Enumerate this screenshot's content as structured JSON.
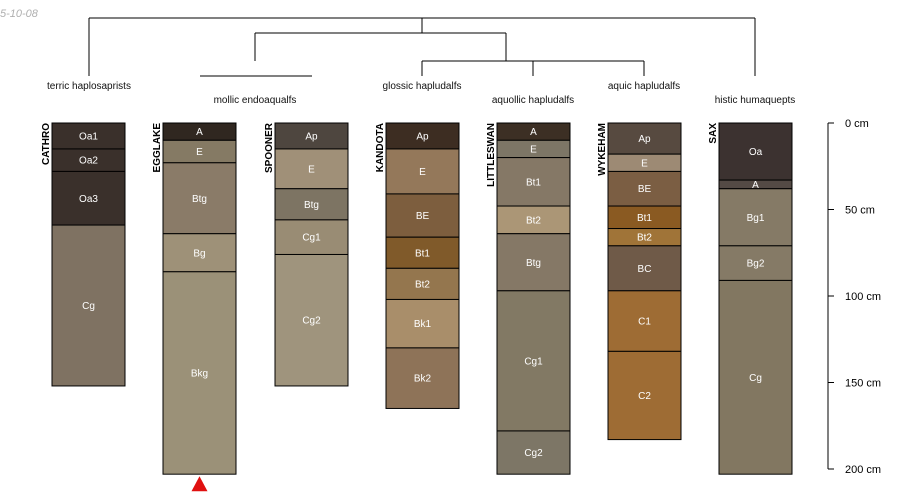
{
  "stamp": "5-10-08",
  "colors": {
    "line": "#000000",
    "label_light": "#ffffff",
    "label_dark": "#222222",
    "marker": "#e01010"
  },
  "profiles": [
    {
      "name": "CATHRO",
      "taxon": "terric haplosaprists",
      "depth_max": 152,
      "horizons": [
        {
          "name": "Oa1",
          "top": 0,
          "bottom": 15,
          "color": "#3a302b"
        },
        {
          "name": "Oa2",
          "top": 15,
          "bottom": 28,
          "color": "#3a302b"
        },
        {
          "name": "Oa3",
          "top": 28,
          "bottom": 59,
          "color": "#3a302b"
        },
        {
          "name": "Cg",
          "top": 59,
          "bottom": 152,
          "color": "#7f7262"
        }
      ]
    },
    {
      "name": "EGGLAKE",
      "taxon": "mollic endoaqualfs",
      "depth_max": 203,
      "marker": true,
      "horizons": [
        {
          "name": "A",
          "top": 0,
          "bottom": 10,
          "color": "#302720"
        },
        {
          "name": "E",
          "top": 10,
          "bottom": 23,
          "color": "#857a64"
        },
        {
          "name": "Btg",
          "top": 23,
          "bottom": 64,
          "color": "#8a7b68"
        },
        {
          "name": "Bg",
          "top": 64,
          "bottom": 86,
          "color": "#9e9178"
        },
        {
          "name": "Bkg",
          "top": 86,
          "bottom": 203,
          "color": "#9b9178"
        }
      ]
    },
    {
      "name": "SPOONER",
      "taxon": "",
      "depth_max": 152,
      "horizons": [
        {
          "name": "Ap",
          "top": 0,
          "bottom": 15,
          "color": "#4e463f"
        },
        {
          "name": "E",
          "top": 15,
          "bottom": 38,
          "color": "#a09078"
        },
        {
          "name": "Btg",
          "top": 38,
          "bottom": 56,
          "color": "#7d7463"
        },
        {
          "name": "Cg1",
          "top": 56,
          "bottom": 76,
          "color": "#998c74"
        },
        {
          "name": "Cg2",
          "top": 76,
          "bottom": 152,
          "color": "#9f947d"
        }
      ]
    },
    {
      "name": "KANDOTA",
      "taxon": "glossic hapludalfs",
      "depth_max": 165,
      "horizons": [
        {
          "name": "Ap",
          "top": 0,
          "bottom": 15,
          "color": "#3d2d22"
        },
        {
          "name": "E",
          "top": 15,
          "bottom": 41,
          "color": "#94785a"
        },
        {
          "name": "BE",
          "top": 41,
          "bottom": 66,
          "color": "#7d5e3e"
        },
        {
          "name": "Bt1",
          "top": 66,
          "bottom": 84,
          "color": "#805a2a"
        },
        {
          "name": "Bt2",
          "top": 84,
          "bottom": 102,
          "color": "#94764e"
        },
        {
          "name": "Bk1",
          "top": 102,
          "bottom": 130,
          "color": "#a98e6a"
        },
        {
          "name": "Bk2",
          "top": 130,
          "bottom": 165,
          "color": "#8e7358"
        }
      ]
    },
    {
      "name": "LITTLESWAN",
      "taxon": "aquollic hapludalfs",
      "depth_max": 203,
      "horizons": [
        {
          "name": "A",
          "top": 0,
          "bottom": 10,
          "color": "#3c2f24"
        },
        {
          "name": "E",
          "top": 10,
          "bottom": 20,
          "color": "#7d7666"
        },
        {
          "name": "Bt1",
          "top": 20,
          "bottom": 48,
          "color": "#857866"
        },
        {
          "name": "Bt2",
          "top": 48,
          "bottom": 64,
          "color": "#ab9676"
        },
        {
          "name": "Btg",
          "top": 64,
          "bottom": 97,
          "color": "#857866"
        },
        {
          "name": "Cg1",
          "top": 97,
          "bottom": 178,
          "color": "#827964"
        },
        {
          "name": "Cg2",
          "top": 178,
          "bottom": 203,
          "color": "#7d7666"
        }
      ]
    },
    {
      "name": "WYKEHAM",
      "taxon": "aquic hapludalfs",
      "depth_max": 183,
      "horizons": [
        {
          "name": "Ap",
          "top": 0,
          "bottom": 18,
          "color": "#574a40"
        },
        {
          "name": "E",
          "top": 18,
          "bottom": 28,
          "color": "#9d8a74"
        },
        {
          "name": "BE",
          "top": 28,
          "bottom": 48,
          "color": "#7b5e43"
        },
        {
          "name": "Bt1",
          "top": 48,
          "bottom": 61,
          "color": "#8a5a22"
        },
        {
          "name": "Bt2",
          "top": 61,
          "bottom": 71,
          "color": "#a07438"
        },
        {
          "name": "BC",
          "top": 71,
          "bottom": 97,
          "color": "#6f5a48"
        },
        {
          "name": "C1",
          "top": 97,
          "bottom": 132,
          "color": "#9e6c34"
        },
        {
          "name": "C2",
          "top": 132,
          "bottom": 183,
          "color": "#9e6c34"
        }
      ]
    },
    {
      "name": "SAX",
      "taxon": "histic humaquepts",
      "depth_max": 203,
      "horizons": [
        {
          "name": "Oa",
          "top": 0,
          "bottom": 33,
          "color": "#3c3230"
        },
        {
          "name": "A",
          "top": 33,
          "bottom": 38,
          "color": "#544a45"
        },
        {
          "name": "Bg1",
          "top": 38,
          "bottom": 71,
          "color": "#857a66"
        },
        {
          "name": "Bg2",
          "top": 71,
          "bottom": 91,
          "color": "#857a66"
        },
        {
          "name": "Cg",
          "top": 91,
          "bottom": 203,
          "color": "#827761"
        }
      ]
    }
  ],
  "scale": {
    "ticks": [
      {
        "depth": 0,
        "label": "0 cm"
      },
      {
        "depth": 50,
        "label": "50 cm"
      },
      {
        "depth": 100,
        "label": "100 cm"
      },
      {
        "depth": 150,
        "label": "150 cm"
      },
      {
        "depth": 200,
        "label": "200 cm"
      }
    ]
  }
}
